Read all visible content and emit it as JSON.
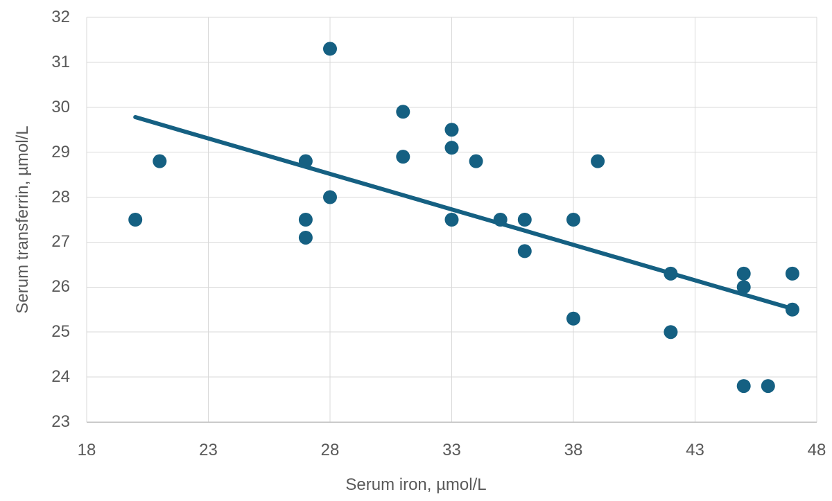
{
  "chart_data": {
    "type": "scatter",
    "title": "",
    "xlabel": "Serum iron, µmol/L",
    "ylabel": "Serum transferrin, µmol/L",
    "xlim": [
      18,
      48
    ],
    "ylim": [
      23,
      32
    ],
    "x_ticks": [
      18,
      23,
      28,
      33,
      38,
      43,
      48
    ],
    "y_ticks": [
      23,
      24,
      25,
      26,
      27,
      28,
      29,
      30,
      31,
      32
    ],
    "grid": true,
    "legend_position": "none",
    "series": [
      {
        "name": "observations",
        "type": "scatter",
        "points": [
          [
            20,
            27.5
          ],
          [
            21,
            28.8
          ],
          [
            27,
            28.8
          ],
          [
            27,
            27.5
          ],
          [
            27,
            27.1
          ],
          [
            28,
            31.3
          ],
          [
            28,
            28.0
          ],
          [
            31,
            29.9
          ],
          [
            31,
            28.9
          ],
          [
            33,
            29.5
          ],
          [
            33,
            29.1
          ],
          [
            33,
            27.5
          ],
          [
            34,
            28.8
          ],
          [
            35,
            27.5
          ],
          [
            36,
            27.5
          ],
          [
            36,
            26.8
          ],
          [
            38,
            27.5
          ],
          [
            38,
            25.3
          ],
          [
            39,
            28.8
          ],
          [
            42,
            26.3
          ],
          [
            42,
            25.0
          ],
          [
            45,
            26.3
          ],
          [
            45,
            26.0
          ],
          [
            45,
            23.8
          ],
          [
            46,
            23.8
          ],
          [
            47,
            26.3
          ],
          [
            47,
            25.5
          ]
        ]
      },
      {
        "name": "trendline",
        "type": "line",
        "points": [
          [
            20,
            29.78
          ],
          [
            47,
            25.52
          ]
        ]
      }
    ],
    "colors": {
      "marker": "#156082",
      "trendline": "#156082",
      "gridline": "#D9D9D9",
      "axis_line": "#BFBFBF",
      "text": "#595959"
    }
  }
}
